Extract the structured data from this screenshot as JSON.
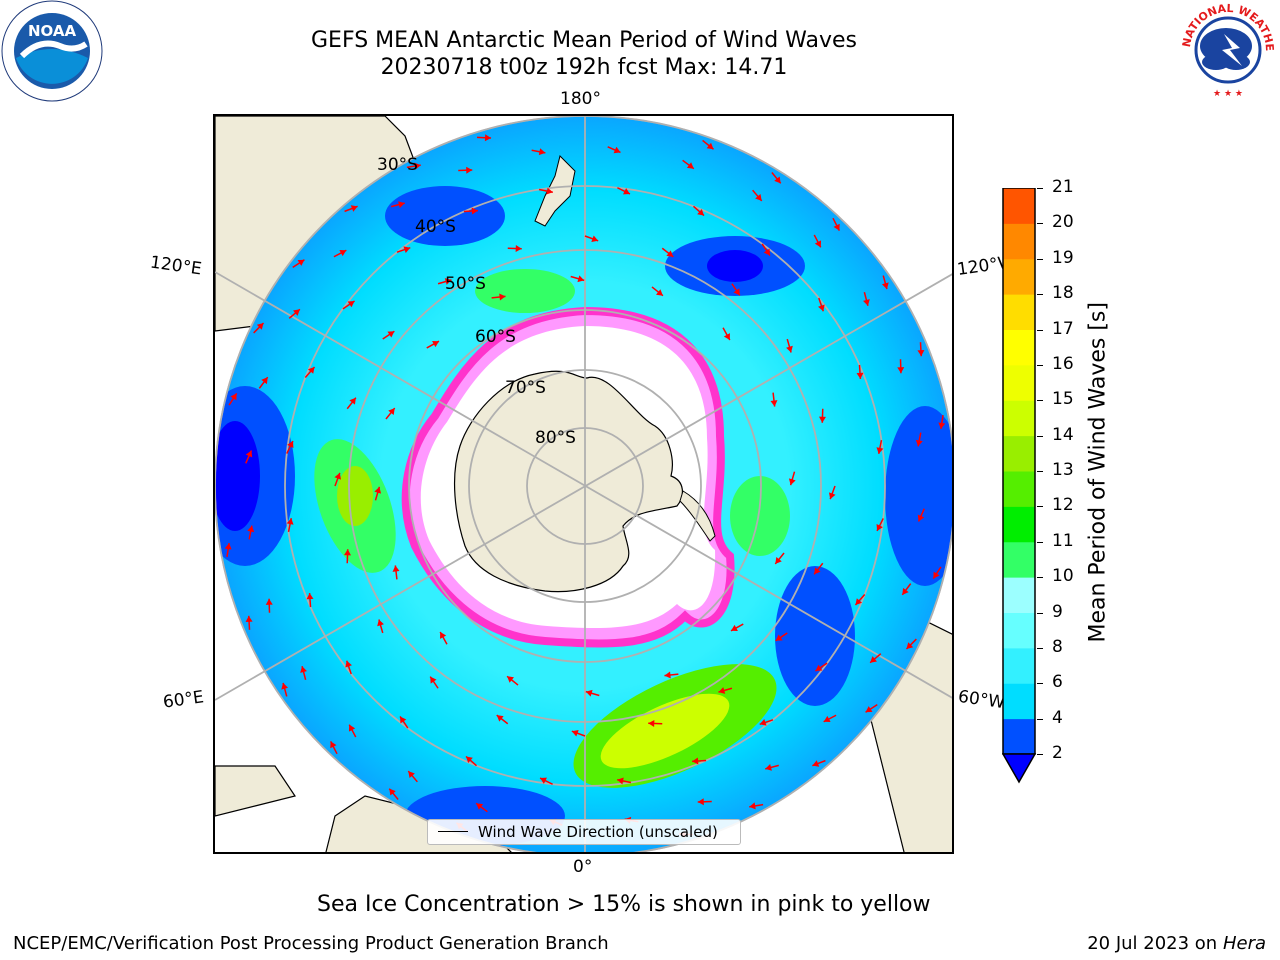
{
  "title": {
    "line1": "GEFS MEAN Antarctic Mean Period of Wind Waves",
    "line2": "20230718 t00z 192h fcst   Max: 14.71"
  },
  "logos": {
    "noaa": {
      "text": "NOAA",
      "icon": "noaa-logo"
    },
    "nws": {
      "text": "NATIONAL WEATHER SERVICE",
      "icon": "nws-logo"
    }
  },
  "map": {
    "projection": "south-polar-stereographic",
    "longitude_labels": {
      "top": "180°",
      "bottom": "0°",
      "left_upper": "120°E",
      "left_lower": "60°E",
      "right_upper": "120°W",
      "right_lower": "60°W"
    },
    "latitude_labels": [
      "30°S",
      "40°S",
      "50°S",
      "60°S",
      "70°S",
      "80°S"
    ],
    "legend": {
      "label": "Wind Wave Direction (unscaled)"
    },
    "arrow_color": "#ff0000",
    "ice_colors": [
      "#ff33cc",
      "#ff99ff",
      "#ffcc66",
      "#ffff66"
    ],
    "land_color": "#efebd8"
  },
  "colorbar": {
    "label": "Mean Period of Wind Waves [s]",
    "ticks": [
      "2",
      "4",
      "6",
      "8",
      "9",
      "10",
      "11",
      "12",
      "13",
      "14",
      "15",
      "16",
      "17",
      "18",
      "19",
      "20",
      "21"
    ],
    "colors": [
      "#0050ff",
      "#00ddff",
      "#33f0ff",
      "#66ffff",
      "#9cffff",
      "#33ff66",
      "#00ee00",
      "#55ee00",
      "#99ee00",
      "#ccff00",
      "#eeff00",
      "#ffff00",
      "#ffdd00",
      "#ffaa00",
      "#ff8800",
      "#ff5500",
      "#ff2200",
      "#ff0000"
    ],
    "under_color": "#0000ff"
  },
  "caption": "Sea Ice Concentration > 15% is shown in pink to yellow",
  "footer": {
    "left": "NCEP/EMC/Verification Post Processing Product Generation Branch",
    "right_date": "20 Jul 2023 on ",
    "right_host": "Hera"
  }
}
